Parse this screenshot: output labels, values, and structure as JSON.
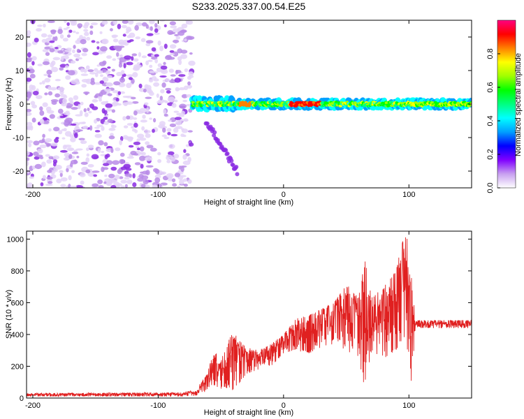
{
  "title": "S233.2025.337.00.54.E25",
  "chart_data": [
    {
      "type": "heatmap",
      "name": "spectrogram",
      "xlabel": "Height of straight line (km)",
      "ylabel": "Frequency (Hz)",
      "xlim": [
        -205,
        150
      ],
      "ylim": [
        -25,
        25
      ],
      "xticks": [
        -200,
        -100,
        0,
        100
      ],
      "yticks": [
        -20,
        -10,
        0,
        10,
        20
      ],
      "colorbar": {
        "label": "Normalized spectral amplitude",
        "range": [
          0,
          1
        ],
        "ticks": [
          "0.0",
          "0.2",
          "0.4",
          "0.6",
          "0.8"
        ],
        "colors": [
          "#ffffff",
          "#c8a0f0",
          "#8000ff",
          "#0000ff",
          "#00a0ff",
          "#00ffff",
          "#00ff80",
          "#00ff00",
          "#a0ff00",
          "#ffff00",
          "#ff8000",
          "#ff0000",
          "#ff0080"
        ]
      },
      "noise_region_x": [
        -205,
        -73
      ],
      "signal_center_hz": 0,
      "signal_start_x": -73
    },
    {
      "type": "line",
      "name": "snr",
      "xlabel": "Height of straight line (km)",
      "ylabel": "SNR (10 * v/v)",
      "xlim": [
        -205,
        150
      ],
      "ylim": [
        0,
        1050
      ],
      "xticks": [
        -200,
        -100,
        0,
        100
      ],
      "yticks": [
        0,
        200,
        400,
        600,
        800,
        1000
      ],
      "color": "#e02020",
      "envelope": {
        "x": [
          -205,
          -80,
          -70,
          -62,
          -55,
          -50,
          -45,
          -40,
          -30,
          -20,
          -10,
          0,
          10,
          20,
          30,
          40,
          50,
          60,
          65,
          70,
          80,
          90,
          95,
          98,
          100,
          103,
          105,
          120,
          150
        ],
        "low": [
          10,
          10,
          15,
          40,
          80,
          50,
          60,
          40,
          150,
          180,
          200,
          280,
          300,
          280,
          320,
          340,
          300,
          250,
          50,
          280,
          250,
          300,
          350,
          400,
          150,
          80,
          440,
          440,
          440
        ],
        "high": [
          30,
          35,
          55,
          140,
          300,
          230,
          350,
          420,
          320,
          300,
          340,
          400,
          500,
          520,
          560,
          600,
          720,
          640,
          870,
          640,
          700,
          810,
          1000,
          1050,
          880,
          700,
          490,
          490,
          490
        ]
      }
    }
  ]
}
